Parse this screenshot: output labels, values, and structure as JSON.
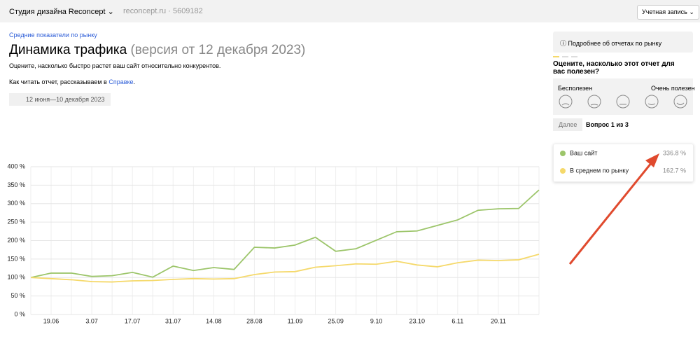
{
  "header": {
    "site_name": "Студия дизайна Reconcept",
    "domain": "reconcept.ru",
    "separator": "·",
    "counter_id": "5609182",
    "account_button": "Учетная запись"
  },
  "breadcrumb": "Средние показатели по рынку",
  "title": "Динамика трафика",
  "title_version": "(версия от 12 декабря 2023)",
  "description": "Оцените, насколько быстро растет ваш сайт относительно конкурентов.",
  "help_text": "Как читать отчет, рассказываем в",
  "help_link": "Справке",
  "help_end": ".",
  "date_range": "12 июня—10 декабря 2023",
  "sidebar": {
    "info_button": "Подробнее об отчетах по рынку",
    "survey_question": "Оцените, насколько этот отчет для вас полезен?",
    "scale_min": "Бесполезен",
    "scale_max": "Очень полезен",
    "next_button": "Далее",
    "progress": "Вопрос 1 из 3"
  },
  "chart_data": {
    "type": "line",
    "categories": [
      null,
      "19.06",
      null,
      "3.07",
      null,
      "17.07",
      null,
      "31.07",
      null,
      "14.08",
      null,
      "28.08",
      null,
      "11.09",
      null,
      "25.09",
      null,
      "9.10",
      null,
      "23.10",
      null,
      "6.11",
      null,
      "20.11",
      null,
      null
    ],
    "series": [
      {
        "name": "Ваш сайт",
        "color": "#9cc56a",
        "total_label": "336.8 %",
        "values": [
          100,
          112,
          112,
          103,
          105,
          114,
          101,
          131,
          119,
          127,
          122,
          182,
          180,
          188,
          209,
          171,
          178,
          201,
          224,
          226,
          241,
          256,
          282,
          286,
          287,
          337
        ]
      },
      {
        "name": "В среднем по рынку",
        "color": "#f5d96b",
        "total_label": "162.7 %",
        "values": [
          100,
          97,
          94,
          89,
          88,
          91,
          92,
          95,
          97,
          96,
          97,
          108,
          115,
          116,
          128,
          132,
          137,
          136,
          144,
          134,
          129,
          140,
          147,
          146,
          148,
          163
        ]
      }
    ],
    "ylim": [
      0,
      400
    ],
    "yticks": [
      {
        "value": 0,
        "label": "0 %"
      },
      {
        "value": 50,
        "label": "50 %"
      },
      {
        "value": 100,
        "label": "100 %"
      },
      {
        "value": 150,
        "label": "150 %"
      },
      {
        "value": 200,
        "label": "200 %"
      },
      {
        "value": 250,
        "label": "250 %"
      },
      {
        "value": 300,
        "label": "300 %"
      },
      {
        "value": 350,
        "label": "350 %"
      },
      {
        "value": 400,
        "label": "400 %"
      }
    ],
    "grid": true
  }
}
